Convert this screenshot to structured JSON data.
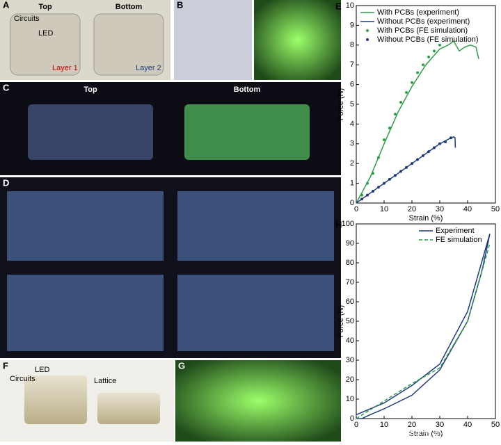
{
  "panels": {
    "a": {
      "label": "A",
      "top": "Top",
      "bottom": "Bottom",
      "circuits": "Circuits",
      "led": "LED",
      "layer1": "Layer 1",
      "layer2": "Layer 2"
    },
    "b": {
      "label": "B"
    },
    "c": {
      "label": "C",
      "top": "Top",
      "bottom": "Bottom"
    },
    "d": {
      "label": "D"
    },
    "f": {
      "label": "F",
      "led": "LED",
      "circuits": "Circuits",
      "lattice": "Lattice"
    },
    "g": {
      "label": "G"
    },
    "watermark": "知乎 @泥土六二三"
  },
  "chart_data": [
    {
      "type": "line",
      "label": "E",
      "xlabel": "Strain (%)",
      "ylabel": "Force (N)",
      "xlim": [
        0,
        50
      ],
      "xticks": [
        0,
        10,
        20,
        30,
        40,
        50
      ],
      "ylim": [
        0,
        10
      ],
      "yticks": [
        0,
        1,
        2,
        3,
        4,
        5,
        6,
        7,
        8,
        9,
        10
      ],
      "legend": "upper left",
      "series": [
        {
          "name": "With PCBs (experiment)",
          "color": "#2e9e4a",
          "style": "line",
          "x": [
            0,
            5,
            10,
            15,
            20,
            25,
            30,
            33,
            35,
            37,
            39,
            41,
            43,
            44
          ],
          "values": [
            0,
            1.3,
            3.0,
            4.6,
            5.9,
            7.0,
            7.8,
            8.0,
            8.2,
            7.7,
            7.9,
            8.0,
            7.9,
            7.3
          ]
        },
        {
          "name": "Without PCBs (experiment)",
          "color": "#1f3a80",
          "style": "line",
          "x": [
            0,
            5,
            10,
            15,
            20,
            25,
            30,
            34,
            35,
            35.5,
            35.6
          ],
          "values": [
            0,
            0.5,
            1.0,
            1.5,
            2.0,
            2.5,
            3.0,
            3.3,
            3.35,
            3.3,
            2.8
          ]
        },
        {
          "name": "With PCBs (FE simulation)",
          "color": "#2e9e4a",
          "style": "dots",
          "x": [
            2,
            4,
            6,
            8,
            10,
            12,
            14,
            16,
            18,
            20,
            22,
            24,
            26,
            28,
            30
          ],
          "values": [
            0.4,
            1.0,
            1.5,
            2.3,
            3.2,
            3.8,
            4.5,
            5.1,
            5.6,
            6.1,
            6.6,
            7.0,
            7.4,
            7.7,
            8.0
          ]
        },
        {
          "name": "Without PCBs (FE simulation)",
          "color": "#1f3a80",
          "style": "dots",
          "x": [
            2,
            4,
            6,
            8,
            10,
            12,
            14,
            16,
            18,
            20,
            22,
            24,
            26,
            28,
            30,
            32,
            34
          ],
          "values": [
            0.2,
            0.4,
            0.6,
            0.8,
            1.0,
            1.2,
            1.4,
            1.6,
            1.8,
            2.0,
            2.2,
            2.4,
            2.6,
            2.8,
            3.0,
            3.1,
            3.3
          ]
        }
      ]
    },
    {
      "type": "line",
      "label": "H",
      "xlabel": "Strain (%)",
      "ylabel": "Force (N)",
      "xlim": [
        0,
        50
      ],
      "xticks": [
        0,
        10,
        20,
        30,
        40,
        50
      ],
      "ylim": [
        0,
        100
      ],
      "yticks": [
        0,
        10,
        20,
        30,
        40,
        50,
        60,
        70,
        80,
        90,
        100
      ],
      "legend": "upper right",
      "series": [
        {
          "name": "Experiment",
          "color": "#1f3a80",
          "style": "line",
          "x": [
            0,
            10,
            20,
            30,
            40,
            45,
            48,
            47,
            45,
            40,
            30,
            20,
            10,
            5,
            2,
            0
          ],
          "values": [
            2,
            8,
            17,
            28,
            55,
            80,
            95,
            88,
            75,
            50,
            25,
            12,
            5,
            2,
            0,
            0
          ]
        },
        {
          "name": "FE simulation",
          "color": "#2e9e4a",
          "style": "dashed",
          "x": [
            0,
            10,
            20,
            30,
            40,
            45,
            48
          ],
          "values": [
            0,
            9,
            18,
            26,
            50,
            75,
            90
          ]
        }
      ]
    }
  ]
}
